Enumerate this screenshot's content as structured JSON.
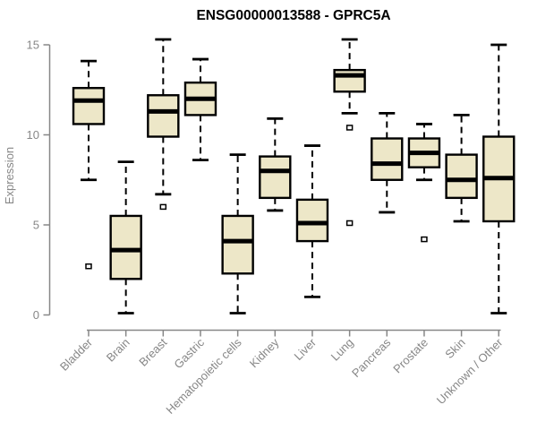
{
  "chart_data": {
    "type": "boxplot",
    "title": "ENSG00000013588 - GPRC5A",
    "ylabel": "Expression",
    "xlabel": "",
    "ylim": [
      0,
      15
    ],
    "yticks": [
      0,
      5,
      10,
      15
    ],
    "grid": false,
    "legend": "none",
    "colors": {
      "box_fill": "#ede7c8",
      "box_stroke": "#000000",
      "median": "#000000",
      "whisker": "#000000",
      "outlier_stroke": "#000000",
      "outlier_fill": "#ffffff",
      "axis": "#878787",
      "labels": "#878787",
      "title": "#000000",
      "background": "#ffffff"
    },
    "categories": [
      "Bladder",
      "Brain",
      "Breast",
      "Gastric",
      "Hematopoietic cells",
      "Kidney",
      "Liver",
      "Lung",
      "Pancreas",
      "Prostate",
      "Skin",
      "Unknown / Other"
    ],
    "series": [
      {
        "name": "Bladder",
        "whislo": 7.5,
        "q1": 10.6,
        "med": 11.9,
        "q3": 12.6,
        "whishi": 14.1,
        "outliers": [
          2.7
        ]
      },
      {
        "name": "Brain",
        "whislo": 0.1,
        "q1": 2.0,
        "med": 3.6,
        "q3": 5.5,
        "whishi": 8.5,
        "outliers": []
      },
      {
        "name": "Breast",
        "whislo": 6.7,
        "q1": 9.9,
        "med": 11.3,
        "q3": 12.2,
        "whishi": 15.3,
        "outliers": [
          6.0
        ]
      },
      {
        "name": "Gastric",
        "whislo": 8.6,
        "q1": 11.1,
        "med": 12.0,
        "q3": 12.9,
        "whishi": 14.2,
        "outliers": []
      },
      {
        "name": "Hematopoietic cells",
        "whislo": 0.1,
        "q1": 2.3,
        "med": 4.1,
        "q3": 5.5,
        "whishi": 8.9,
        "outliers": []
      },
      {
        "name": "Kidney",
        "whislo": 5.8,
        "q1": 6.5,
        "med": 8.0,
        "q3": 8.8,
        "whishi": 10.9,
        "outliers": []
      },
      {
        "name": "Liver",
        "whislo": 1.0,
        "q1": 4.1,
        "med": 5.1,
        "q3": 6.4,
        "whishi": 9.4,
        "outliers": []
      },
      {
        "name": "Lung",
        "whislo": 11.2,
        "q1": 12.4,
        "med": 13.3,
        "q3": 13.6,
        "whishi": 15.3,
        "outliers": [
          10.4,
          5.1
        ]
      },
      {
        "name": "Pancreas",
        "whislo": 5.7,
        "q1": 7.5,
        "med": 8.4,
        "q3": 9.8,
        "whishi": 11.2,
        "outliers": []
      },
      {
        "name": "Prostate",
        "whislo": 7.5,
        "q1": 8.2,
        "med": 9.0,
        "q3": 9.8,
        "whishi": 10.6,
        "outliers": [
          4.2
        ]
      },
      {
        "name": "Skin",
        "whislo": 5.2,
        "q1": 6.5,
        "med": 7.5,
        "q3": 8.9,
        "whishi": 11.1,
        "outliers": []
      },
      {
        "name": "Unknown / Other",
        "whislo": 0.1,
        "q1": 5.2,
        "med": 7.6,
        "q3": 9.9,
        "whishi": 15.0,
        "outliers": []
      }
    ]
  }
}
